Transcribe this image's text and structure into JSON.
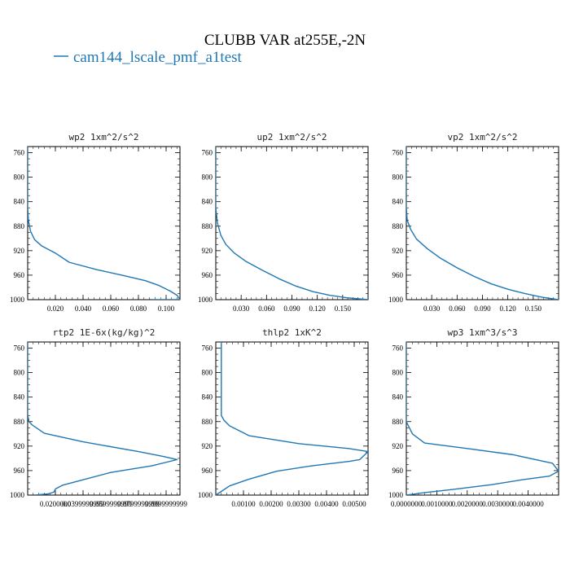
{
  "figure_title": "CLUBB VAR at255E,-2N",
  "legend": {
    "label": "cam144_lscale_pmf_a1test",
    "color": "#1f77b4"
  },
  "chart_data": [
    {
      "type": "line",
      "panel": "wp2",
      "title": "wp2  1xm^2/s^2",
      "xlim": [
        0.0,
        0.11
      ],
      "ylim": [
        1000,
        750
      ],
      "xticks": [
        0.02,
        0.04,
        0.06,
        0.08,
        0.1
      ],
      "xticklabels": [
        "0.020",
        "0.040",
        "0.060",
        "0.080",
        "0.100"
      ],
      "yticks": [
        760,
        800,
        840,
        880,
        920,
        960,
        1000
      ],
      "series": [
        {
          "x": [
            0.0,
            0.0,
            0.0005,
            0.002,
            0.005,
            0.01,
            0.02,
            0.03,
            0.05,
            0.07,
            0.085,
            0.095,
            0.103,
            0.108,
            0.11,
            0.105,
            0.09
          ],
          "y": [
            750,
            850,
            870,
            888,
            902,
            912,
            924,
            939,
            951,
            961,
            969,
            977,
            986,
            993,
            1000,
            1000,
            1000
          ]
        }
      ]
    },
    {
      "type": "line",
      "panel": "up2",
      "title": "up2  1xm^2/s^2",
      "xlim": [
        0.0,
        0.18
      ],
      "ylim": [
        1000,
        750
      ],
      "xticks": [
        0.03,
        0.06,
        0.09,
        0.12,
        0.15
      ],
      "xticklabels": [
        "0.030",
        "0.060",
        "0.090",
        "0.120",
        "0.150"
      ],
      "yticks": [
        760,
        800,
        840,
        880,
        920,
        960,
        1000
      ],
      "series": [
        {
          "x": [
            0.0,
            0.0,
            0.002,
            0.006,
            0.012,
            0.022,
            0.035,
            0.055,
            0.075,
            0.095,
            0.115,
            0.135,
            0.155,
            0.172,
            0.18
          ],
          "y": [
            750,
            850,
            875,
            895,
            910,
            924,
            937,
            952,
            966,
            978,
            987,
            993,
            997,
            999,
            1000
          ]
        }
      ]
    },
    {
      "type": "line",
      "panel": "vp2",
      "title": "vp2  1xm^2/s^2",
      "xlim": [
        0.0,
        0.18
      ],
      "ylim": [
        1000,
        750
      ],
      "xticks": [
        0.03,
        0.06,
        0.09,
        0.12,
        0.15
      ],
      "xticklabels": [
        "0.030",
        "0.060",
        "0.090",
        "0.120",
        "0.150"
      ],
      "yticks": [
        760,
        800,
        840,
        880,
        920,
        960,
        1000
      ],
      "series": [
        {
          "x": [
            0.0,
            0.0,
            0.001,
            0.005,
            0.012,
            0.025,
            0.04,
            0.06,
            0.08,
            0.1,
            0.12,
            0.14,
            0.16,
            0.175,
            0.18
          ],
          "y": [
            750,
            850,
            870,
            885,
            901,
            917,
            932,
            948,
            962,
            974,
            983,
            990,
            996,
            999,
            1000
          ]
        }
      ]
    },
    {
      "type": "line",
      "panel": "rtp2",
      "title": "rtp2  1E-6x(kg/kg)^2",
      "xlim": [
        0.0,
        0.11
      ],
      "ylim": [
        1000,
        750
      ],
      "xticks": [
        0.02,
        0.04,
        0.06,
        0.08,
        0.1
      ],
      "xticklabels": [
        "0.0200000",
        "0.0399999999",
        "0.0599999999",
        "0.0799999999",
        "0.0999999999"
      ],
      "yticks": [
        760,
        800,
        840,
        880,
        920,
        960,
        1000
      ],
      "series": [
        {
          "x": [
            0.0,
            0.0,
            0.001,
            0.003,
            0.012,
            0.04,
            0.08,
            0.098,
            0.108,
            0.09,
            0.06,
            0.04,
            0.025,
            0.02,
            0.019,
            0.015,
            0.005
          ],
          "y": [
            750,
            870,
            880,
            885,
            899,
            913,
            929,
            937,
            942,
            952,
            963,
            975,
            984,
            990,
            995,
            998,
            1000
          ]
        }
      ]
    },
    {
      "type": "line",
      "panel": "thlp2",
      "title": "thlp2  1xK^2",
      "xlim": [
        0.0,
        0.0055
      ],
      "ylim": [
        1000,
        750
      ],
      "xticks": [
        0.001,
        0.002,
        0.003,
        0.004,
        0.005
      ],
      "xticklabels": [
        "0.00100",
        "0.00200",
        "0.00300",
        "0.00400",
        "0.00500"
      ],
      "yticks": [
        760,
        800,
        840,
        880,
        920,
        960,
        1000
      ],
      "series": [
        {
          "x": [
            0.0002,
            0.0002,
            0.0003,
            0.0005,
            0.0012,
            0.003,
            0.0048,
            0.0055,
            0.0052,
            0.0048,
            0.0035,
            0.0022,
            0.0012,
            0.0005,
            0.0002,
            0.0
          ],
          "y": [
            750,
            870,
            878,
            887,
            903,
            916,
            924,
            929,
            942,
            945,
            952,
            961,
            974,
            985,
            994,
            1000
          ]
        }
      ]
    },
    {
      "type": "line",
      "panel": "wp3",
      "title": "wp3  1xm^3/s^3",
      "xlim": [
        0.0,
        0.005
      ],
      "ylim": [
        1000,
        750
      ],
      "xticks": [
        0.0,
        0.001,
        0.002,
        0.003,
        0.004
      ],
      "xticklabels": [
        "0.0000000",
        "0.0010000",
        "0.0020000",
        "0.0030000",
        "0.0040000"
      ],
      "yticks": [
        760,
        800,
        840,
        880,
        920,
        960,
        1000
      ],
      "series": [
        {
          "x": [
            0.0,
            0.0,
            0.0002,
            0.0006,
            0.002,
            0.0035,
            0.0048,
            0.005,
            0.0047,
            0.0038,
            0.0028,
            0.0015,
            0.0006,
            0.0
          ],
          "y": [
            750,
            880,
            900,
            915,
            924,
            934,
            948,
            961,
            969,
            975,
            983,
            991,
            996,
            1000
          ]
        }
      ]
    }
  ]
}
